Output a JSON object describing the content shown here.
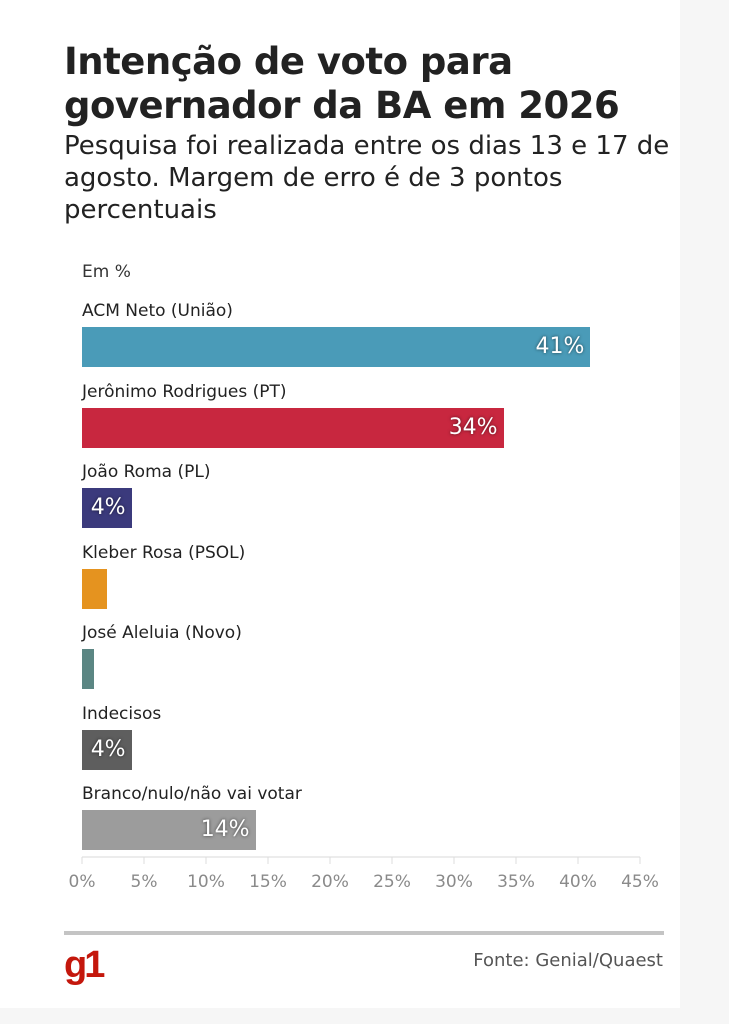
{
  "title": "Intenção de voto para governador da BA em 2026",
  "subtitle": "Pesquisa foi realizada entre os dias 13 e 17 de agosto. Margem de erro é de 3 pontos percentuais",
  "unit_label": "Em %",
  "source": "Fonte: Genial/Quaest",
  "logo": "g1",
  "chart_data": {
    "type": "bar",
    "orientation": "horizontal",
    "title": "Intenção de voto para governador da BA em 2026",
    "xlabel": "",
    "ylabel": "Em %",
    "xlim": [
      0,
      45
    ],
    "categories": [
      "ACM Neto (União)",
      "Jerônimo Rodrigues (PT)",
      "João Roma (PL)",
      "Kleber Rosa (PSOL)",
      "José Aleluia (Novo)",
      "Indecisos",
      "Branco/nulo/não vai votar"
    ],
    "values": [
      41,
      34,
      4,
      2,
      1,
      4,
      14
    ],
    "value_labels": [
      "41%",
      "34%",
      "4%",
      "",
      "",
      "4%",
      "14%"
    ],
    "colors": [
      "#4a9bb8",
      "#c8273f",
      "#3b3a7c",
      "#e5931f",
      "#5b8683",
      "#5e5e5e",
      "#9c9c9c"
    ],
    "ticks": [
      0,
      5,
      10,
      15,
      20,
      25,
      30,
      35,
      40,
      45
    ],
    "tick_labels": [
      "0%",
      "5%",
      "10%",
      "15%",
      "20%",
      "25%",
      "30%",
      "35%",
      "40%",
      "45%"
    ]
  }
}
